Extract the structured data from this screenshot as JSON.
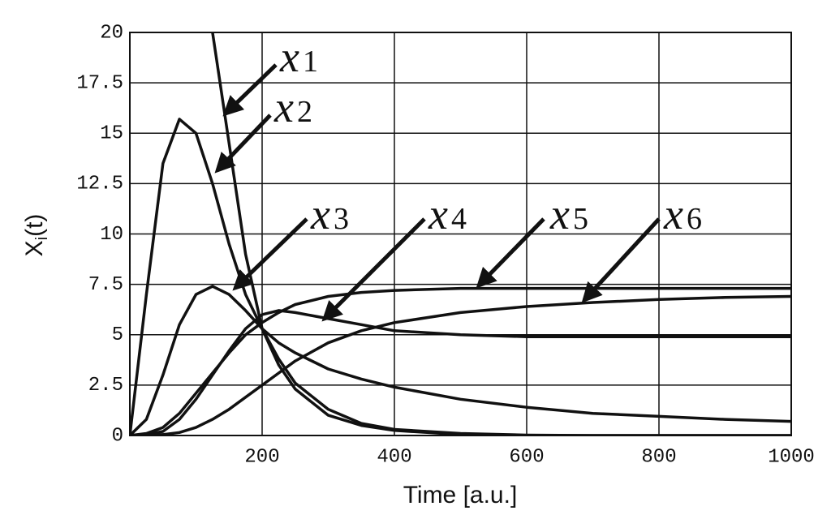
{
  "chart_data": {
    "type": "line",
    "xlabel": "Time [a.u.]",
    "ylabel": {
      "main": "X",
      "sub": "i",
      "rest": "(t)"
    },
    "x": [
      0,
      25,
      50,
      75,
      100,
      125,
      150,
      175,
      200,
      225,
      250,
      300,
      350,
      400,
      500,
      600,
      700,
      800,
      900,
      1000
    ],
    "series": [
      {
        "color": "#111111",
        "values": [
          null,
          null,
          null,
          null,
          null,
          20,
          14.5,
          9,
          5.3,
          3.5,
          2.3,
          1.0,
          0.5,
          0.25,
          0.05,
          0,
          0,
          0,
          0,
          0
        ]
      },
      {
        "color": "#111111",
        "values": [
          0,
          7,
          13.5,
          15.7,
          15,
          12.5,
          9.5,
          7,
          5.3,
          3.8,
          2.6,
          1.3,
          0.6,
          0.3,
          0.1,
          0.02,
          0,
          0,
          0,
          0
        ]
      },
      {
        "color": "#111111",
        "values": [
          0,
          0.8,
          3,
          5.5,
          7,
          7.4,
          7,
          6.2,
          5.3,
          4.6,
          4.1,
          3.3,
          2.8,
          2.4,
          1.8,
          1.4,
          1.1,
          0.95,
          0.8,
          0.7
        ]
      },
      {
        "color": "#111111",
        "values": [
          0,
          0.05,
          0.2,
          0.8,
          1.8,
          3,
          4.2,
          5.3,
          6.0,
          6.2,
          6.1,
          5.8,
          5.5,
          5.2,
          5.0,
          4.9,
          4.9,
          4.9,
          4.9,
          4.9
        ]
      },
      {
        "color": "#111111",
        "values": [
          0,
          0.1,
          0.4,
          1.1,
          2.1,
          3.1,
          4.1,
          5.0,
          5.6,
          6.1,
          6.5,
          6.9,
          7.1,
          7.2,
          7.3,
          7.3,
          7.3,
          7.3,
          7.3,
          7.3
        ]
      },
      {
        "color": "#111111",
        "values": [
          0,
          0,
          0.05,
          0.15,
          0.4,
          0.8,
          1.3,
          1.9,
          2.5,
          3.1,
          3.7,
          4.6,
          5.2,
          5.6,
          6.1,
          6.4,
          6.6,
          6.75,
          6.85,
          6.9
        ]
      }
    ],
    "annotations": [
      {
        "text": "x",
        "sub": "1"
      },
      {
        "text": "x",
        "sub": "2"
      },
      {
        "text": "x",
        "sub": "3"
      },
      {
        "text": "x",
        "sub": "4"
      },
      {
        "text": "x",
        "sub": "5"
      },
      {
        "text": "x",
        "sub": "6"
      }
    ],
    "xlim": [
      0,
      1000
    ],
    "xticks": [
      200,
      400,
      600,
      800,
      1000
    ],
    "ylim": [
      0,
      20
    ],
    "yticks": [
      0,
      2.5,
      5,
      7.5,
      10,
      12.5,
      15,
      17.5,
      20
    ],
    "grid": true
  }
}
